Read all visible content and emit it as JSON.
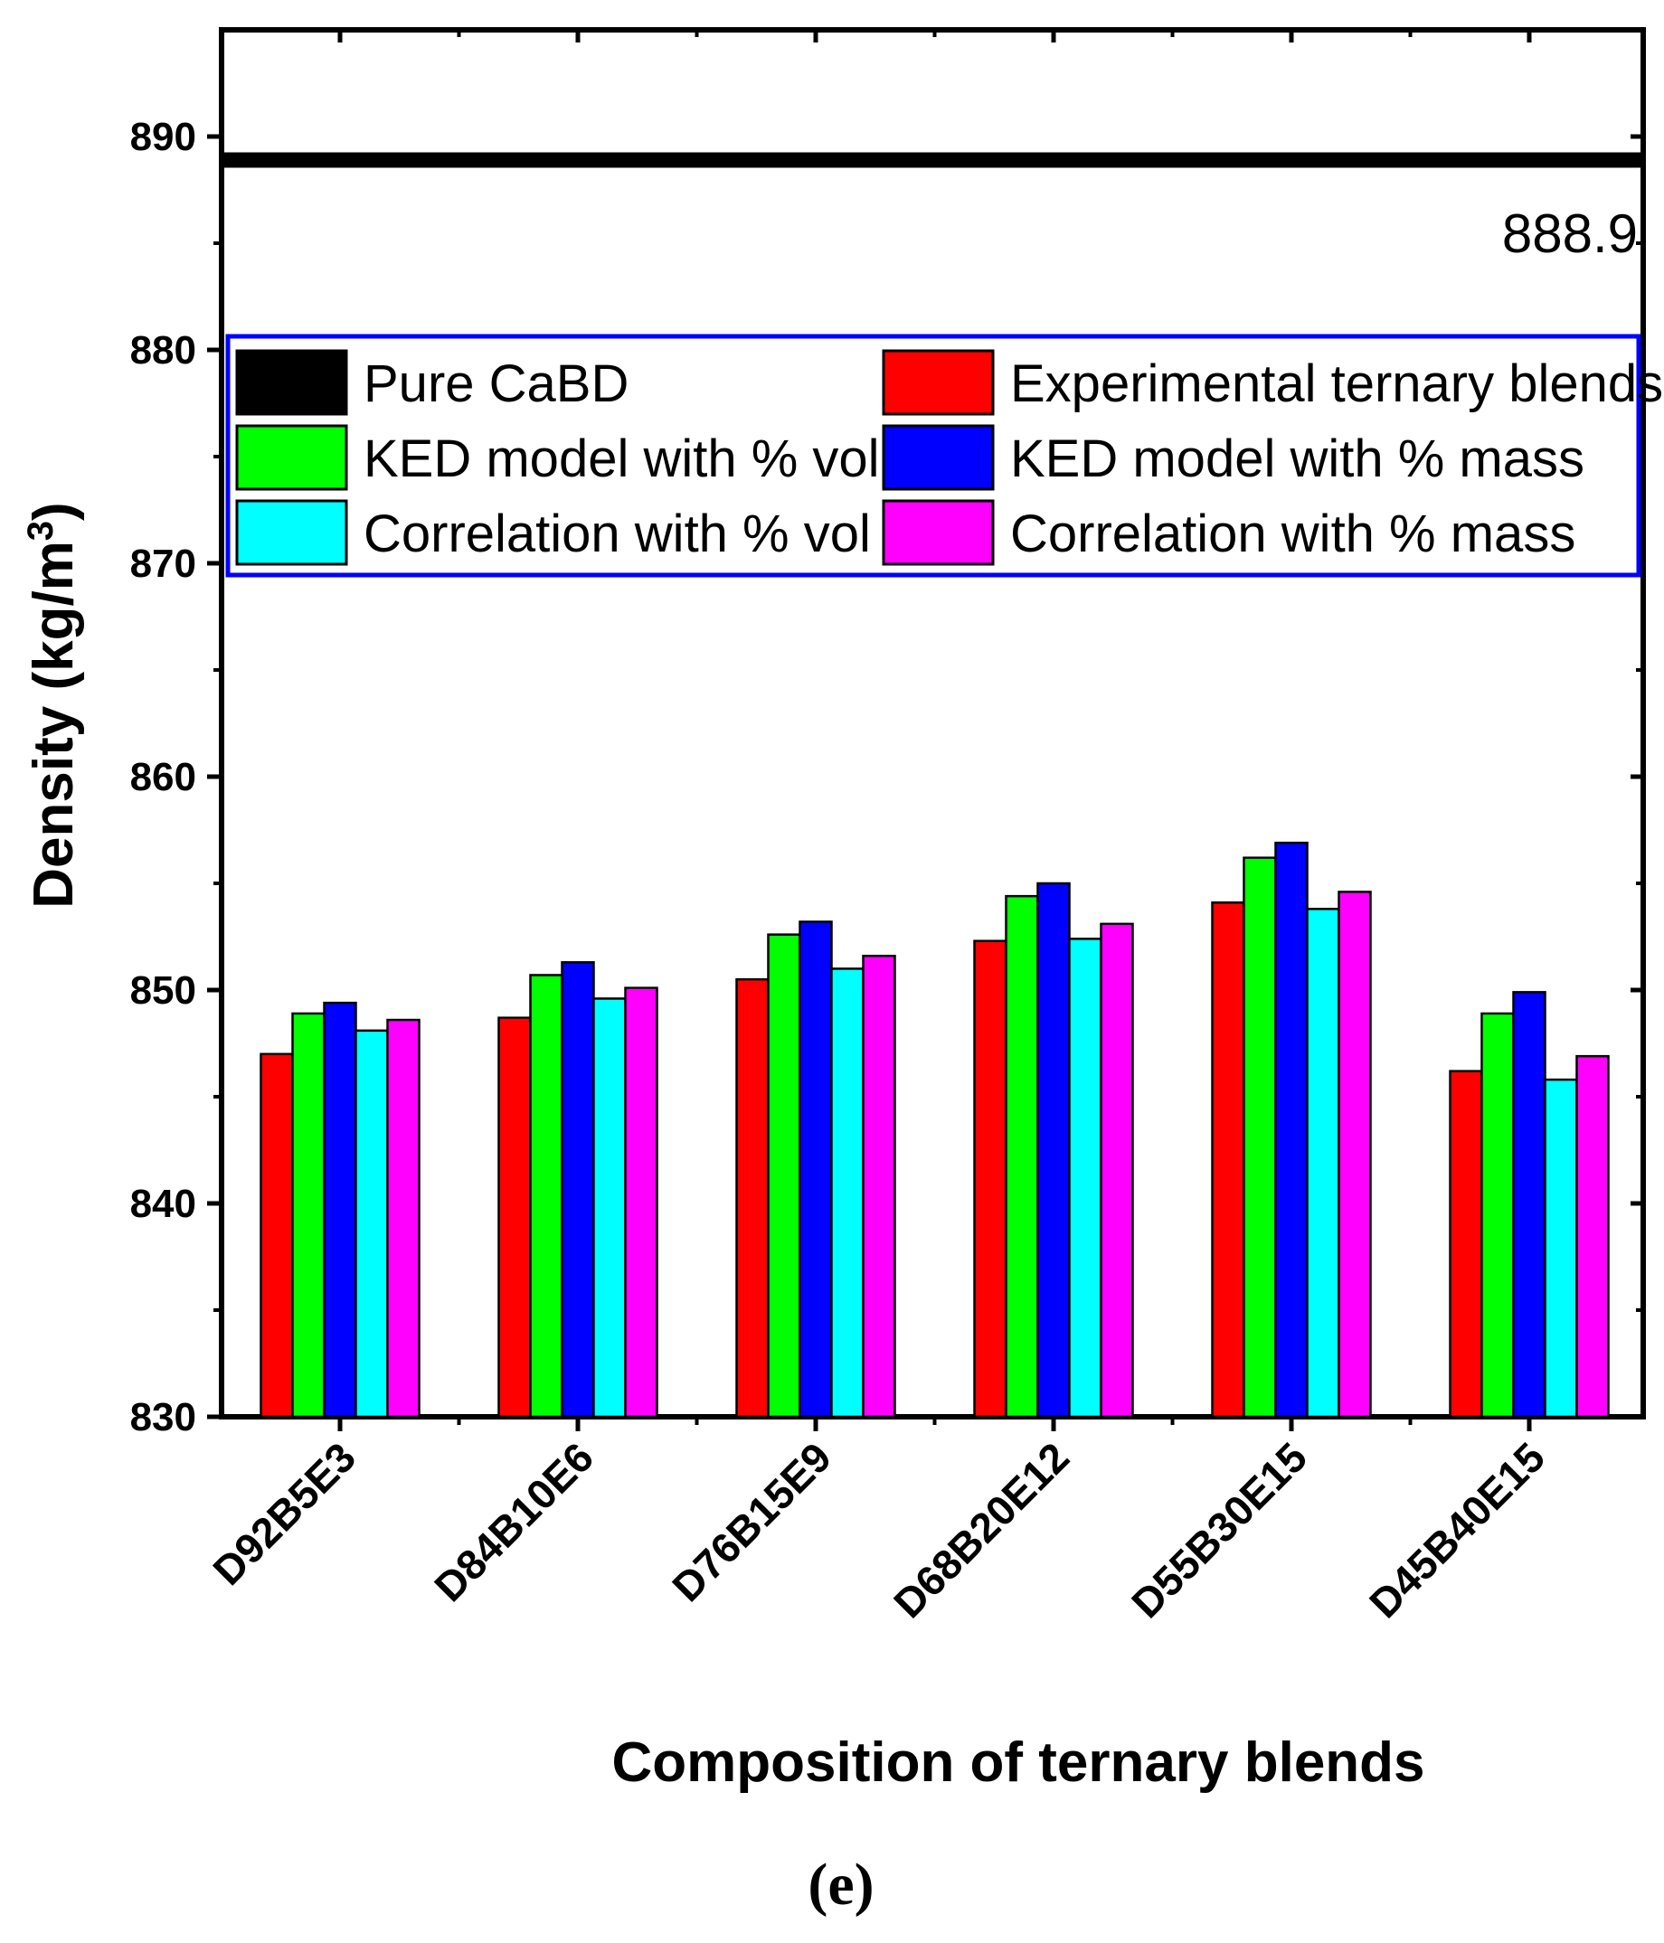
{
  "chart_data": {
    "type": "bar",
    "title": "",
    "xlabel": "Composition of ternary blends",
    "ylabel": "Density (kg/m",
    "ylabel_sup": "3",
    "ylabel_close": ")",
    "ylim": [
      830,
      895
    ],
    "yticks": [
      830,
      840,
      850,
      860,
      870,
      880,
      890
    ],
    "categories": [
      "D92B5E3",
      "D84B10E6",
      "D76B15E9",
      "D68B20E12",
      "D55B30E15",
      "D45B40E15"
    ],
    "series": [
      {
        "name": "Experimental ternary blends",
        "color": "#ff0000",
        "values": [
          847.0,
          848.7,
          850.5,
          852.3,
          854.1,
          846.2
        ]
      },
      {
        "name": "KED model with % vol",
        "color": "#00ff00",
        "values": [
          848.9,
          850.7,
          852.6,
          854.4,
          856.2,
          848.9
        ]
      },
      {
        "name": "KED model with % mass",
        "color": "#0000ff",
        "values": [
          849.4,
          851.3,
          853.2,
          855.0,
          856.9,
          849.9
        ]
      },
      {
        "name": "Correlation with % vol",
        "color": "#00ffff",
        "values": [
          848.1,
          849.6,
          851.0,
          852.4,
          853.8,
          845.8
        ]
      },
      {
        "name": "Correlation with % mass",
        "color": "#ff00ff",
        "values": [
          848.6,
          850.1,
          851.6,
          853.1,
          854.6,
          846.9
        ]
      }
    ],
    "reference_line": {
      "name": "Pure CaBD",
      "value": 888.9,
      "label": "888.9",
      "color": "#000000"
    },
    "legend": {
      "placement": "top",
      "border_color": "#0000ff",
      "entries": [
        {
          "name": "Pure CaBD",
          "color": "#000000"
        },
        {
          "name": "Experimental ternary blends",
          "color": "#ff0000"
        },
        {
          "name": "KED model with % vol",
          "color": "#00ff00"
        },
        {
          "name": "KED model with % mass",
          "color": "#0000ff"
        },
        {
          "name": "Correlation with % vol",
          "color": "#00ffff"
        },
        {
          "name": "Correlation with % mass",
          "color": "#ff00ff"
        }
      ]
    },
    "grid": false,
    "caption": "(e)"
  }
}
